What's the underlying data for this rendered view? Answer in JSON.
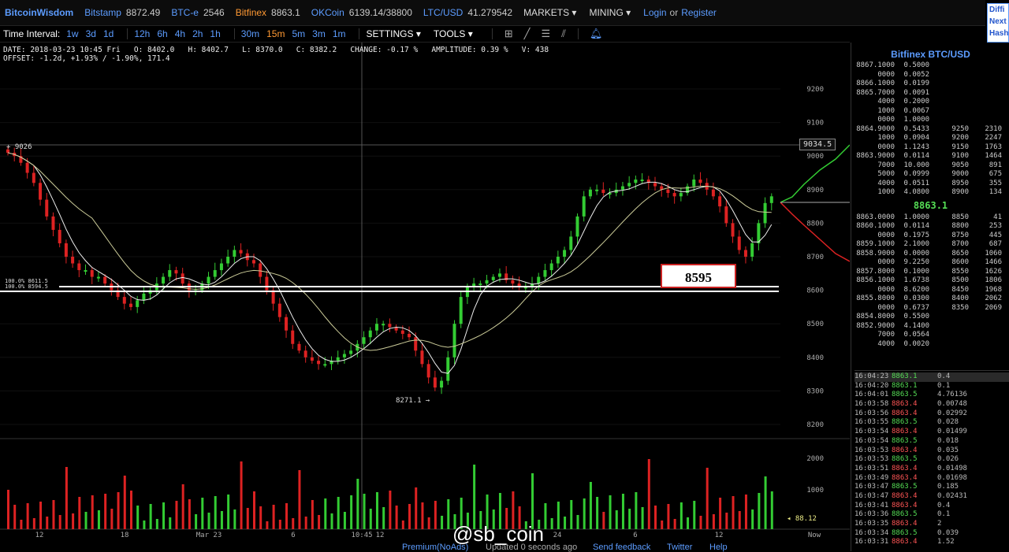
{
  "topbar": {
    "brand": "BitcoinWisdom",
    "exchanges": [
      {
        "name": "Bitstamp",
        "price": "8872.49",
        "active": false
      },
      {
        "name": "BTC-e",
        "price": "2546",
        "active": false
      },
      {
        "name": "Bitfinex",
        "price": "8863.1",
        "active": true
      },
      {
        "name": "OKCoin",
        "price": "6139.14/38800",
        "active": false
      },
      {
        "name": "LTC/USD",
        "price": "41.279542",
        "active": false
      }
    ],
    "markets": "MARKETS",
    "mining": "MINING",
    "login": "Login",
    "or": "or",
    "register": "Register",
    "rightbox": [
      "Diffi",
      "Next",
      "Hash"
    ]
  },
  "toolbar": {
    "label": "Time Interval:",
    "intervals": [
      "1w",
      "3d",
      "1d",
      "12h",
      "6h",
      "4h",
      "2h",
      "1h",
      "30m",
      "15m",
      "5m",
      "3m",
      "1m"
    ],
    "selected": "15m",
    "settings": "SETTINGS",
    "tools": "TOOLS"
  },
  "info": {
    "line1": "DATE: 2018-03-23 10:45 Fri   O: 8402.0   H: 8402.7   L: 8370.0   C: 8382.2   CHANGE: -0.17 %   AMPLITUDE: 0.39 %   V: 438",
    "line2": "OFFSET: -1.2d, +1.93% / -1.90%, 171.4"
  },
  "chart_data": {
    "type": "candlestick",
    "y_ticks": [
      "9200",
      "9100",
      "9000",
      "8900",
      "8800",
      "8700",
      "8600",
      "8500",
      "8400",
      "8300",
      "8200"
    ],
    "x_ticks": [
      "12",
      "18",
      "Mar 23",
      "6",
      "10:45",
      "12",
      "24",
      "6",
      "12",
      "Now"
    ],
    "vol_ticks": [
      "2000",
      "1000"
    ],
    "annotations": {
      "high_label": "9026",
      "low_label": "8271.1",
      "crosshair_price": "9034.5",
      "fib_label_1": "100.0% 8611.5",
      "fib_label_2": "100.0% 8594.5",
      "volume_last": "88.12",
      "boxed_price": "8595"
    },
    "closes": [
      9010,
      9000,
      8980,
      8950,
      8920,
      8870,
      8820,
      8780,
      8740,
      8700,
      8680,
      8660,
      8660,
      8640,
      8640,
      8620,
      8600,
      8580,
      8560,
      8550,
      8570,
      8590,
      8600,
      8620,
      8640,
      8660,
      8650,
      8620,
      8600,
      8600,
      8620,
      8640,
      8660,
      8680,
      8700,
      8720,
      8710,
      8690,
      8680,
      8640,
      8600,
      8560,
      8520,
      8480,
      8440,
      8420,
      8400,
      8390,
      8380,
      8380,
      8390,
      8400,
      8410,
      8420,
      8440,
      8460,
      8480,
      8500,
      8500,
      8490,
      8480,
      8470,
      8460,
      8420,
      8380,
      8340,
      8310,
      8330,
      8400,
      8500,
      8580,
      8610,
      8620,
      8620,
      8630,
      8640,
      8650,
      8630,
      8620,
      8610,
      8610,
      8620,
      8640,
      8660,
      8680,
      8700,
      8720,
      8760,
      8820,
      8880,
      8900,
      8900,
      8890,
      8890,
      8900,
      8910,
      8920,
      8930,
      8930,
      8920,
      8910,
      8900,
      8890,
      8880,
      8890,
      8910,
      8930,
      8920,
      8900,
      8880,
      8850,
      8800,
      8760,
      8720,
      8700,
      8740,
      8800,
      8860,
      8880
    ]
  },
  "orderbook": {
    "title": "Bitfinex BTC/USD",
    "asks": [
      [
        "8867.1000",
        "0.5000",
        "",
        ""
      ],
      [
        "0000",
        "0.0052",
        "",
        ""
      ],
      [
        "8866.1000",
        "0.0199",
        "",
        ""
      ],
      [
        "8865.7000",
        "0.0091",
        "",
        ""
      ],
      [
        "4000",
        "0.2000",
        "",
        ""
      ],
      [
        "1000",
        "0.0067",
        "",
        ""
      ],
      [
        "0000",
        "1.0000",
        "",
        ""
      ],
      [
        "8864.9000",
        "0.5433",
        "9250",
        "2310"
      ],
      [
        "1000",
        "0.0904",
        "9200",
        "2247"
      ],
      [
        "0000",
        "1.1243",
        "9150",
        "1763"
      ],
      [
        "8863.9000",
        "0.0114",
        "9100",
        "1464"
      ],
      [
        "7000",
        "10.000",
        "9050",
        "891"
      ],
      [
        "5000",
        "0.0999",
        "9000",
        "675"
      ],
      [
        "4000",
        "0.0511",
        "8950",
        "355"
      ],
      [
        "1000",
        "4.0800",
        "8900",
        "134"
      ]
    ],
    "last": "8863.1",
    "bids": [
      [
        "8863.0000",
        "1.0000",
        "8850",
        "41"
      ],
      [
        "8860.1000",
        "0.0114",
        "8800",
        "253"
      ],
      [
        "0000",
        "0.1975",
        "8750",
        "445"
      ],
      [
        "8859.1000",
        "2.1000",
        "8700",
        "687"
      ],
      [
        "8858.9000",
        "0.0000",
        "8650",
        "1060"
      ],
      [
        "0000",
        "9.2250",
        "8600",
        "1466"
      ],
      [
        "8857.8000",
        "0.1000",
        "8550",
        "1626"
      ],
      [
        "8856.1000",
        "1.6738",
        "8500",
        "1806"
      ],
      [
        "0000",
        "8.6200",
        "8450",
        "1968"
      ],
      [
        "8855.8000",
        "0.0300",
        "8400",
        "2062"
      ],
      [
        "0000",
        "0.6737",
        "8350",
        "2069"
      ],
      [
        "8854.8000",
        "0.5500",
        "",
        ""
      ],
      [
        "8852.9000",
        "4.1400",
        "",
        ""
      ],
      [
        "7000",
        "0.0564",
        "",
        ""
      ],
      [
        "4000",
        "0.0020",
        "",
        ""
      ]
    ]
  },
  "trades": [
    {
      "time": "16:04:23",
      "price": "8863.1",
      "vol": "0.4",
      "side": "g"
    },
    {
      "time": "16:04:20",
      "price": "8863.1",
      "vol": "0.1",
      "side": "g"
    },
    {
      "time": "16:04:01",
      "price": "8863.5",
      "vol": "4.76136",
      "side": "g"
    },
    {
      "time": "16:03:58",
      "price": "8863.4",
      "vol": "0.00748",
      "side": "r"
    },
    {
      "time": "16:03:56",
      "price": "8863.4",
      "vol": "0.02992",
      "side": "r"
    },
    {
      "time": "16:03:55",
      "price": "8863.5",
      "vol": "0.028",
      "side": "g"
    },
    {
      "time": "16:03:54",
      "price": "8863.4",
      "vol": "0.01499",
      "side": "r"
    },
    {
      "time": "16:03:54",
      "price": "8863.5",
      "vol": "0.018",
      "side": "g"
    },
    {
      "time": "16:03:53",
      "price": "8863.4",
      "vol": "0.035",
      "side": "r"
    },
    {
      "time": "16:03:53",
      "price": "8863.5",
      "vol": "0.026",
      "side": "g"
    },
    {
      "time": "16:03:51",
      "price": "8863.4",
      "vol": "0.01498",
      "side": "r"
    },
    {
      "time": "16:03:49",
      "price": "8863.4",
      "vol": "0.01698",
      "side": "r"
    },
    {
      "time": "16:03:47",
      "price": "8863.5",
      "vol": "0.185",
      "side": "g"
    },
    {
      "time": "16:03:47",
      "price": "8863.4",
      "vol": "0.02431",
      "side": "r"
    },
    {
      "time": "16:03:41",
      "price": "8863.4",
      "vol": "0.4",
      "side": "r"
    },
    {
      "time": "16:03:36",
      "price": "8863.5",
      "vol": "0.1",
      "side": "g"
    },
    {
      "time": "16:03:35",
      "price": "8863.4",
      "vol": "2",
      "side": "r"
    },
    {
      "time": "16:03:34",
      "price": "8863.5",
      "vol": "0.039",
      "side": "g"
    },
    {
      "time": "16:03:31",
      "price": "8863.4",
      "vol": "1.52",
      "side": "r"
    }
  ],
  "bottom": {
    "premium": "Premium(NoAds)",
    "updated": "Updated 0 seconds ago",
    "feedback": "Send feedback",
    "twitter": "Twitter",
    "help": "Help"
  },
  "watermark": "@sb_coin"
}
